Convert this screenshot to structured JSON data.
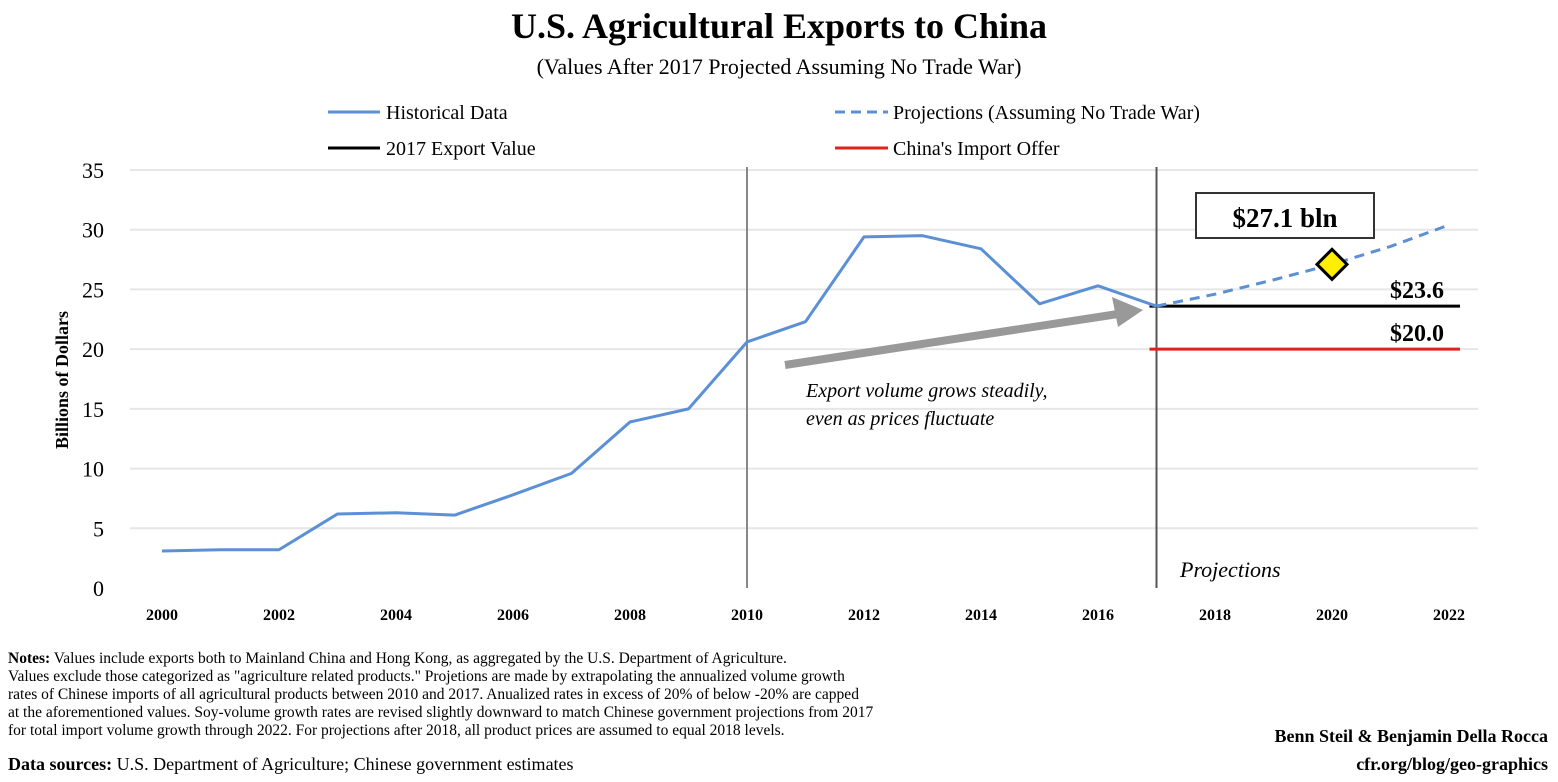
{
  "chart_data": {
    "type": "line",
    "title": "U.S. Agricultural Exports to China",
    "subtitle": "(Values After 2017 Projected Assuming No Trade War)",
    "ylabel": "Billions of Dollars",
    "xlabel": "",
    "ylim": [
      0,
      35
    ],
    "xlim": [
      2000,
      2022
    ],
    "yticks": [
      "0",
      "5",
      "10",
      "15",
      "20",
      "25",
      "30",
      "35"
    ],
    "xticks": [
      "2000",
      "2002",
      "2004",
      "2006",
      "2008",
      "2010",
      "2012",
      "2014",
      "2016",
      "2018",
      "2020",
      "2022"
    ],
    "grid": true,
    "legend": {
      "position": "top",
      "items": [
        {
          "label": "Historical Data",
          "style": "solid",
          "color": "#5b8fd6"
        },
        {
          "label": "Projections (Assuming No Trade War)",
          "style": "dashed",
          "color": "#5b8fd6"
        },
        {
          "label": "2017 Export Value",
          "style": "solid",
          "color": "#000000"
        },
        {
          "label": "China's Import Offer",
          "style": "solid",
          "color": "#e0221b"
        }
      ]
    },
    "series": [
      {
        "name": "Historical Data",
        "x": [
          2000,
          2001,
          2002,
          2003,
          2004,
          2005,
          2006,
          2007,
          2008,
          2009,
          2010,
          2011,
          2012,
          2013,
          2014,
          2015,
          2016,
          2017
        ],
        "values": [
          3.1,
          3.2,
          3.2,
          6.2,
          6.3,
          6.1,
          7.8,
          9.6,
          13.9,
          15.0,
          20.6,
          22.3,
          29.4,
          29.5,
          28.4,
          23.8,
          25.3,
          23.6
        ]
      },
      {
        "name": "Projections (Assuming No Trade War)",
        "x": [
          2017,
          2018,
          2019,
          2020,
          2021,
          2022
        ],
        "values": [
          23.6,
          24.6,
          25.8,
          27.1,
          28.6,
          30.4
        ]
      }
    ],
    "reference_lines": [
      {
        "name": "2017 Export Value",
        "value": 23.6,
        "label": "$23.6",
        "from": 2017,
        "to": 2022
      },
      {
        "name": "China's Import Offer",
        "value": 20.0,
        "label": "$20.0",
        "from": 2017,
        "to": 2022
      }
    ],
    "vertical_lines": [
      2010,
      2017
    ],
    "highlight": {
      "x": 2020,
      "value": 27.1,
      "label": "$27.1 bln",
      "marker_color": "#ffee00"
    },
    "annotations": {
      "arrow_text_1": "Export volume grows steadily,",
      "arrow_text_2": "even as prices fluctuate",
      "projections_label": "Projections"
    }
  },
  "footer": {
    "notes_label": "Notes:",
    "notes_lines": [
      " Values include exports both to Mainland China and Hong Kong, as aggregated by the U.S. Department of Agriculture.",
      "Values exclude those categorized as \"agriculture related products.\" Projetions are made by extrapolating the annualized volume growth",
      "rates of Chinese imports of all agricultural products between 2010 and 2017. Anualized rates in excess of 20% of below -20% are capped",
      "at the aforementioned values. Soy-volume growth rates are revised slightly downward to match Chinese government projections from 2017",
      "for total import volume growth through 2022. For projections after 2018, all product prices are assumed to equal 2018 levels."
    ],
    "sources_label": "Data sources:",
    "sources_text": " U.S. Department of Agriculture; Chinese government estimates",
    "authors": "Benn Steil & Benjamin Della Rocca",
    "site": "cfr.org/blog/geo-graphics"
  }
}
